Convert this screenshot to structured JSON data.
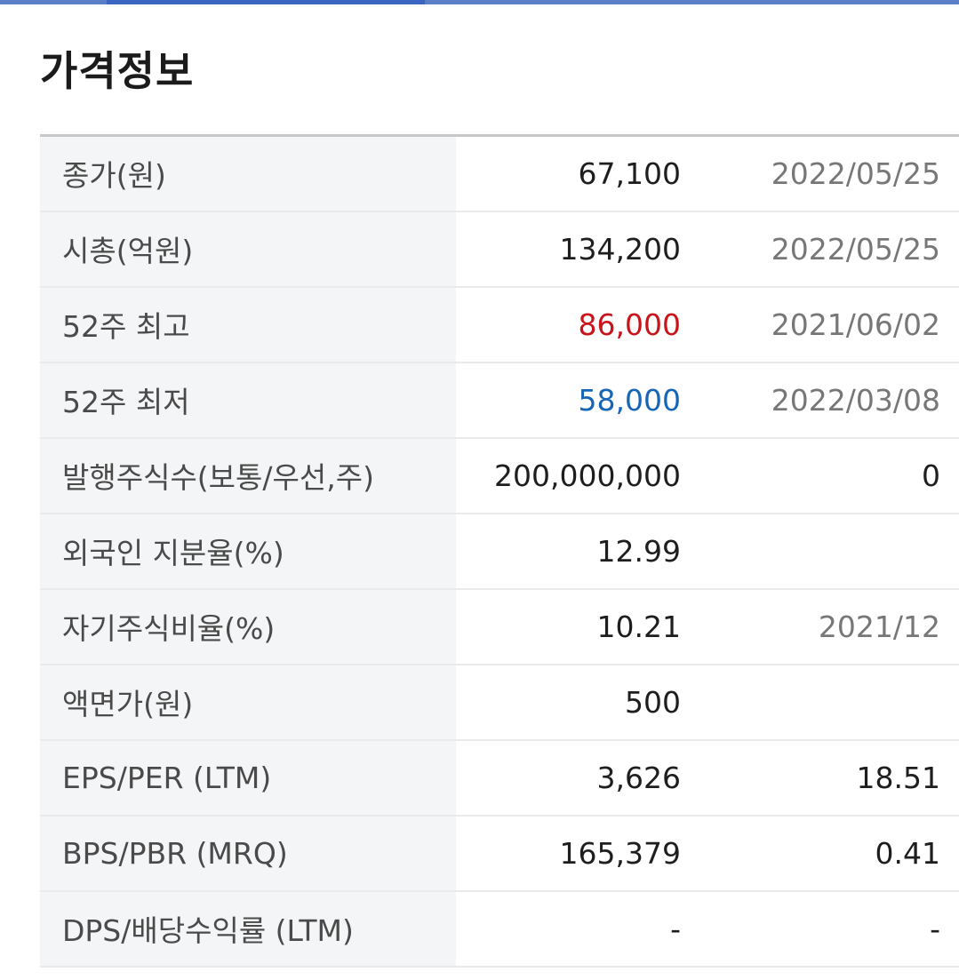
{
  "section": {
    "title": "가격정보"
  },
  "colors": {
    "up": "#c8141b",
    "down": "#1766b5",
    "tab_indicator": "#3a66c2"
  },
  "rows": [
    {
      "label": "종가(원)",
      "value": "67,100",
      "extra": "2022/05/25"
    },
    {
      "label": "시총(억원)",
      "value": "134,200",
      "extra": "2022/05/25"
    },
    {
      "label": "52주 최고",
      "value": "86,000",
      "extra": "2021/06/02"
    },
    {
      "label": "52주 최저",
      "value": "58,000",
      "extra": "2022/03/08"
    },
    {
      "label": "발행주식수(보통/우선,주)",
      "value": "200,000,000",
      "extra": "0"
    },
    {
      "label": "외국인 지분율(%)",
      "value": "12.99",
      "extra": ""
    },
    {
      "label": "자기주식비율(%)",
      "value": "10.21",
      "extra": "2021/12"
    },
    {
      "label": "액면가(원)",
      "value": "500",
      "extra": ""
    },
    {
      "label": "EPS/PER (LTM)",
      "value": "3,626",
      "extra": "18.51"
    },
    {
      "label": "BPS/PBR (MRQ)",
      "value": "165,379",
      "extra": "0.41"
    },
    {
      "label": "DPS/배당수익률 (LTM)",
      "value": "-",
      "extra": "-"
    }
  ]
}
